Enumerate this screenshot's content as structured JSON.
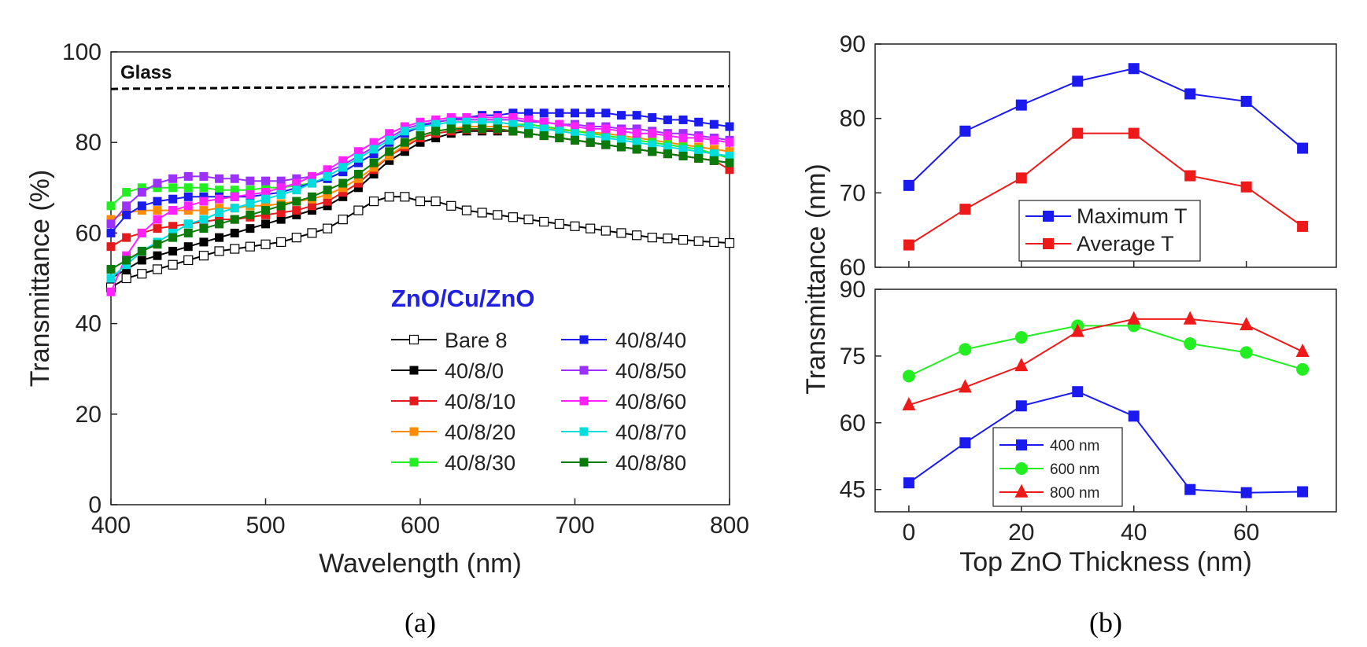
{
  "captions": {
    "a": "(a)",
    "b": "(b)"
  },
  "chart_data": [
    {
      "id": "a",
      "type": "line",
      "xlabel": "Wavelength (nm)",
      "ylabel": "Transmittance (%)",
      "xlim": [
        400,
        800
      ],
      "ylim": [
        0,
        100
      ],
      "xticks": [
        400,
        500,
        600,
        700,
        800
      ],
      "yticks": [
        0,
        20,
        40,
        60,
        80,
        100
      ],
      "x": [
        400,
        410,
        420,
        430,
        440,
        450,
        460,
        470,
        480,
        490,
        500,
        510,
        520,
        530,
        540,
        550,
        560,
        570,
        580,
        590,
        600,
        610,
        620,
        630,
        640,
        650,
        660,
        670,
        680,
        690,
        700,
        710,
        720,
        730,
        740,
        750,
        760,
        770,
        780,
        790,
        800
      ],
      "annotation": "Glass",
      "legend_title": "ZnO/Cu/ZnO",
      "legend_title_color": "#2020e0",
      "series": [
        {
          "name": "Glass",
          "dashed": true,
          "color": "#000000",
          "marker": "none",
          "values": [
            91.8,
            91.9,
            91.9,
            91.9,
            92.0,
            92.0,
            92.0,
            92.0,
            92.1,
            92.1,
            92.1,
            92.1,
            92.1,
            92.2,
            92.2,
            92.2,
            92.2,
            92.2,
            92.3,
            92.3,
            92.3,
            92.3,
            92.3,
            92.3,
            92.3,
            92.3,
            92.3,
            92.3,
            92.3,
            92.3,
            92.4,
            92.4,
            92.4,
            92.4,
            92.4,
            92.4,
            92.4,
            92.4,
            92.4,
            92.4,
            92.4
          ]
        },
        {
          "name": "Bare 8",
          "color": "#000000",
          "marker": "open-square",
          "values": [
            48,
            50,
            51,
            52,
            53,
            54,
            55,
            56,
            56.5,
            57,
            57.5,
            58,
            59,
            60,
            61,
            63,
            65,
            67,
            68,
            68,
            67,
            67,
            66,
            65,
            64.5,
            64,
            63.5,
            63,
            62.5,
            62,
            61.5,
            61,
            60.5,
            60,
            59.5,
            59,
            58.8,
            58.5,
            58.2,
            58,
            57.8
          ]
        },
        {
          "name": "40/8/0",
          "color": "#000000",
          "marker": "square",
          "values": [
            50,
            52,
            54,
            55,
            56,
            57,
            58,
            59,
            60,
            61,
            62,
            63,
            64,
            65,
            66,
            68,
            70,
            73,
            76,
            78,
            80,
            81,
            82,
            82.5,
            82.5,
            82.5,
            82.5,
            82,
            81.5,
            81,
            80.5,
            80,
            79.5,
            79,
            78.5,
            78,
            77.5,
            77,
            76.5,
            76,
            75.5
          ]
        },
        {
          "name": "40/8/10",
          "color": "#e41a1c",
          "marker": "square",
          "values": [
            57,
            59,
            60,
            61,
            61.5,
            62,
            62.5,
            63,
            63,
            63.5,
            64,
            64.5,
            65,
            66,
            67,
            69,
            71,
            74,
            77,
            79,
            81,
            82,
            82.5,
            82.8,
            82.8,
            82.8,
            82.5,
            82,
            81.5,
            81,
            80.5,
            80,
            79.5,
            79,
            78.5,
            78,
            77.5,
            77,
            76.5,
            76,
            74
          ]
        },
        {
          "name": "40/8/20",
          "color": "#ff8c00",
          "marker": "square",
          "values": [
            63,
            64.5,
            65,
            65,
            65,
            65,
            65,
            65.5,
            65.5,
            66,
            66,
            66.5,
            67,
            67.5,
            68.5,
            70,
            72,
            74.5,
            77,
            79.5,
            81.5,
            82.5,
            83,
            83.5,
            83.5,
            83.5,
            83.5,
            83.5,
            83,
            82.8,
            82.5,
            82.2,
            82,
            81.5,
            81,
            80.5,
            80,
            79.5,
            79,
            78.5,
            78
          ]
        },
        {
          "name": "40/8/30",
          "color": "#22ee22",
          "marker": "square",
          "values": [
            66,
            69,
            70,
            70,
            70,
            70,
            70,
            69.5,
            69.5,
            69.5,
            70,
            70,
            70.5,
            71,
            72,
            73.5,
            75.5,
            77.5,
            80,
            82,
            83.5,
            84,
            84.5,
            84.5,
            84.5,
            84.5,
            84,
            84,
            83.5,
            83,
            82.5,
            82,
            81.5,
            81,
            80.5,
            80,
            79.5,
            79,
            78.5,
            77.5,
            76.5
          ]
        },
        {
          "name": "40/8/40",
          "color": "#1a1aee",
          "marker": "square",
          "values": [
            60,
            64,
            66,
            67,
            67.5,
            68,
            68,
            68,
            68,
            68,
            68.5,
            69,
            70,
            71,
            72,
            73.5,
            75.5,
            77.5,
            80,
            82,
            83.5,
            84.5,
            85,
            85.5,
            86,
            86,
            86.5,
            86.5,
            86.5,
            86.5,
            86.5,
            86.5,
            86.5,
            86,
            86,
            85.5,
            85,
            85,
            84.5,
            84,
            83.5
          ]
        },
        {
          "name": "40/8/50",
          "color": "#9b30ff",
          "marker": "square",
          "values": [
            62,
            66,
            69,
            71,
            72,
            72.5,
            72.5,
            72,
            72,
            71.5,
            71.5,
            71.5,
            72,
            72.5,
            73.5,
            75,
            77,
            79,
            81,
            83,
            84,
            84.5,
            85,
            85,
            85,
            85,
            85,
            84.5,
            84.5,
            84,
            84,
            83.5,
            83.5,
            83,
            83,
            82.5,
            82,
            82,
            81.5,
            81,
            80.5
          ]
        },
        {
          "name": "40/8/60",
          "color": "#ff22ff",
          "marker": "square",
          "values": [
            47,
            55,
            60,
            63,
            65,
            66,
            67,
            67.5,
            68,
            68.5,
            69,
            70,
            71,
            72.5,
            74,
            76,
            78,
            80,
            82,
            83.5,
            84.5,
            85,
            85.5,
            85.5,
            85.5,
            85.5,
            85.5,
            85,
            84.5,
            84,
            83.5,
            83,
            83,
            82.5,
            82,
            82,
            81.5,
            81,
            81,
            80.5,
            80
          ]
        },
        {
          "name": "40/8/70",
          "color": "#00dddd",
          "marker": "square",
          "values": [
            50,
            53,
            56,
            58,
            60,
            62,
            63,
            64.5,
            65.5,
            66.5,
            67.5,
            68.5,
            69.5,
            71,
            72.5,
            74.5,
            76.5,
            78.5,
            80.5,
            82.5,
            83.5,
            84,
            84.5,
            84.5,
            84.5,
            84.5,
            84,
            83.5,
            83,
            82.5,
            82,
            81.5,
            81,
            80.5,
            80,
            79.5,
            79,
            78.5,
            78,
            77.5,
            77
          ]
        },
        {
          "name": "40/8/80",
          "color": "#0a7a0a",
          "marker": "square",
          "values": [
            52,
            54,
            56,
            57.5,
            59,
            60,
            61,
            62,
            63,
            64,
            65,
            66,
            67,
            68,
            69.5,
            71,
            73,
            75.5,
            78,
            80,
            81.5,
            82.5,
            83,
            83,
            83,
            83,
            82.5,
            82,
            81.5,
            81,
            80.5,
            80,
            79.5,
            79,
            78.5,
            78,
            77.5,
            77,
            76.5,
            76,
            75.5
          ]
        }
      ]
    },
    {
      "id": "b-top",
      "type": "line",
      "ylabel": "Transmittance (nm)",
      "xlim": [
        -6,
        76
      ],
      "ylim": [
        60,
        90
      ],
      "yticks": [
        60,
        70,
        80,
        90
      ],
      "x": [
        0,
        10,
        20,
        30,
        40,
        50,
        60,
        70
      ],
      "series": [
        {
          "name": "Maximum T",
          "color": "#1a1aee",
          "marker": "square",
          "values": [
            71,
            78.3,
            81.8,
            85,
            86.7,
            83.3,
            82.3,
            76
          ]
        },
        {
          "name": "Average T",
          "color": "#ee1a1a",
          "marker": "square",
          "values": [
            63,
            67.8,
            72,
            78,
            78,
            72.3,
            70.8,
            65.5
          ]
        }
      ]
    },
    {
      "id": "b-bottom",
      "type": "line",
      "xlabel": "Top ZnO Thickness (nm)",
      "xlim": [
        -6,
        76
      ],
      "ylim": [
        40,
        90
      ],
      "xticks": [
        0,
        20,
        40,
        60
      ],
      "yticks": [
        45,
        60,
        75,
        90
      ],
      "x": [
        0,
        10,
        20,
        30,
        40,
        50,
        60,
        70
      ],
      "series": [
        {
          "name": "400 nm",
          "color": "#1a1aee",
          "marker": "square",
          "values": [
            46.5,
            55.5,
            63.8,
            67,
            61.5,
            45,
            44.3,
            44.5
          ]
        },
        {
          "name": "600 nm",
          "color": "#22ee22",
          "marker": "circle",
          "values": [
            70.5,
            76.5,
            79.2,
            81.8,
            81.8,
            77.8,
            75.8,
            72
          ]
        },
        {
          "name": "800 nm",
          "color": "#ee1a1a",
          "marker": "triangle",
          "values": [
            64,
            68,
            72.8,
            80.5,
            83.3,
            83.3,
            82,
            76
          ]
        }
      ]
    }
  ]
}
